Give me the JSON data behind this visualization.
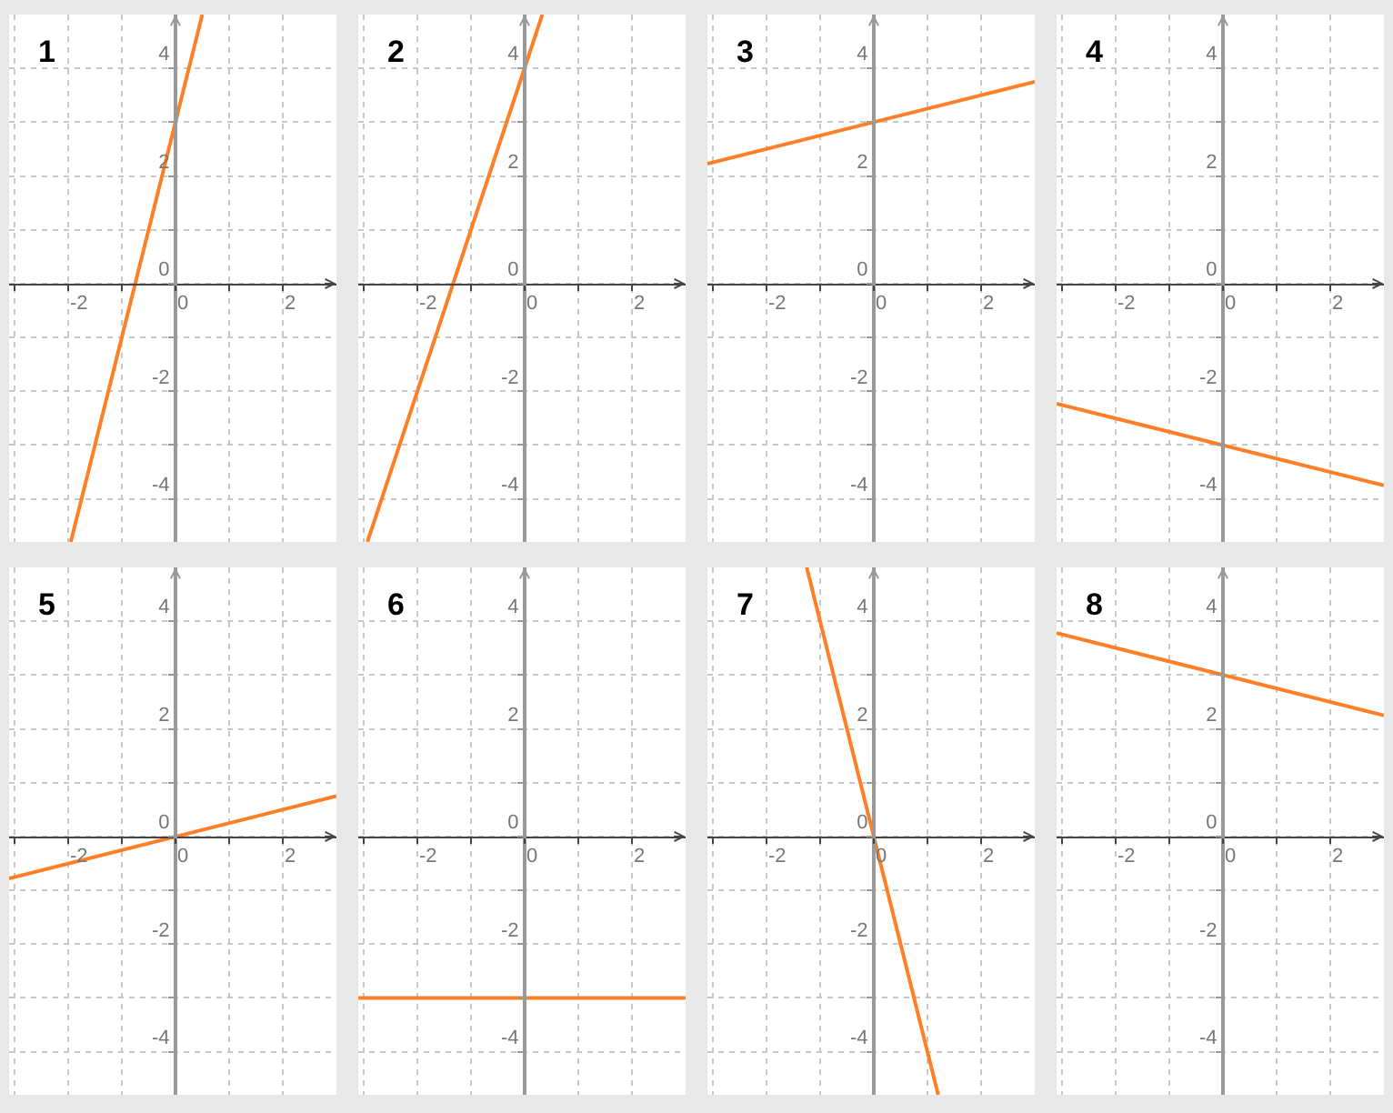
{
  "chart_data": [
    {
      "type": "line",
      "title": "1",
      "xlim": [
        -3.1,
        3
      ],
      "ylim": [
        -4.8,
        5
      ],
      "xticks": [
        {
          "value": -3,
          "label": null
        },
        -2,
        {
          "value": -1,
          "label": null
        },
        0,
        {
          "value": 1,
          "label": null
        },
        2
      ],
      "yticks": [
        -4,
        {
          "value": -3,
          "label": null
        },
        -2,
        {
          "value": -1,
          "label": null
        },
        0,
        {
          "value": 1,
          "label": null
        },
        2,
        {
          "value": 3,
          "label": null
        },
        4
      ],
      "grid": true,
      "series": [
        {
          "color": "#ff7f27",
          "x": [
            -1.95,
            0.5
          ],
          "values": [
            -4.8,
            5
          ]
        }
      ]
    },
    {
      "type": "line",
      "title": "2",
      "xlim": [
        -3.1,
        3
      ],
      "ylim": [
        -4.8,
        5
      ],
      "xticks": [
        {
          "value": -3,
          "label": null
        },
        -2,
        {
          "value": -1,
          "label": null
        },
        0,
        {
          "value": 1,
          "label": null
        },
        2
      ],
      "yticks": [
        -4,
        {
          "value": -3,
          "label": null
        },
        -2,
        {
          "value": -1,
          "label": null
        },
        0,
        {
          "value": 1,
          "label": null
        },
        2,
        {
          "value": 3,
          "label": null
        },
        4
      ],
      "grid": true,
      "series": [
        {
          "color": "#ff7f27",
          "x": [
            -2.93,
            0.33
          ],
          "values": [
            -4.8,
            5
          ]
        }
      ]
    },
    {
      "type": "line",
      "title": "3",
      "xlim": [
        -3.1,
        3
      ],
      "ylim": [
        -4.8,
        5
      ],
      "xticks": [
        {
          "value": -3,
          "label": null
        },
        -2,
        {
          "value": -1,
          "label": null
        },
        0,
        {
          "value": 1,
          "label": null
        },
        2
      ],
      "yticks": [
        -4,
        {
          "value": -3,
          "label": null
        },
        -2,
        {
          "value": -1,
          "label": null
        },
        0,
        {
          "value": 1,
          "label": null
        },
        2,
        {
          "value": 3,
          "label": null
        },
        4
      ],
      "grid": true,
      "series": [
        {
          "color": "#ff7f27",
          "x": [
            -3.1,
            3
          ],
          "values": [
            2.23,
            3.75
          ]
        }
      ]
    },
    {
      "type": "line",
      "title": "4",
      "xlim": [
        -3.1,
        3
      ],
      "ylim": [
        -4.8,
        5
      ],
      "xticks": [
        {
          "value": -3,
          "label": null
        },
        -2,
        {
          "value": -1,
          "label": null
        },
        0,
        {
          "value": 1,
          "label": null
        },
        2
      ],
      "yticks": [
        -4,
        {
          "value": -3,
          "label": null
        },
        -2,
        {
          "value": -1,
          "label": null
        },
        0,
        {
          "value": 1,
          "label": null
        },
        2,
        {
          "value": 3,
          "label": null
        },
        4
      ],
      "grid": true,
      "series": [
        {
          "color": "#ff7f27",
          "x": [
            -3.1,
            3
          ],
          "values": [
            -2.23,
            -3.75
          ]
        }
      ]
    },
    {
      "type": "line",
      "title": "5",
      "xlim": [
        -3.1,
        3
      ],
      "ylim": [
        -4.8,
        5
      ],
      "xticks": [
        {
          "value": -3,
          "label": null
        },
        -2,
        {
          "value": -1,
          "label": null
        },
        0,
        {
          "value": 1,
          "label": null
        },
        2
      ],
      "yticks": [
        -4,
        {
          "value": -3,
          "label": null
        },
        -2,
        {
          "value": -1,
          "label": null
        },
        0,
        {
          "value": 1,
          "label": null
        },
        2,
        {
          "value": 3,
          "label": null
        },
        4
      ],
      "grid": true,
      "series": [
        {
          "color": "#ff7f27",
          "x": [
            -3.1,
            3
          ],
          "values": [
            -0.78,
            0.75
          ]
        }
      ]
    },
    {
      "type": "line",
      "title": "6",
      "xlim": [
        -3.1,
        3
      ],
      "ylim": [
        -4.8,
        5
      ],
      "xticks": [
        {
          "value": -3,
          "label": null
        },
        -2,
        {
          "value": -1,
          "label": null
        },
        0,
        {
          "value": 1,
          "label": null
        },
        2
      ],
      "yticks": [
        -4,
        {
          "value": -3,
          "label": null
        },
        -2,
        {
          "value": -1,
          "label": null
        },
        0,
        {
          "value": 1,
          "label": null
        },
        2,
        {
          "value": 3,
          "label": null
        },
        4
      ],
      "grid": true,
      "series": [
        {
          "color": "#ff7f27",
          "x": [
            -3.1,
            3
          ],
          "values": [
            -3,
            -3
          ]
        }
      ]
    },
    {
      "type": "line",
      "title": "7",
      "xlim": [
        -3.1,
        3
      ],
      "ylim": [
        -4.8,
        5
      ],
      "xticks": [
        {
          "value": -3,
          "label": null
        },
        -2,
        {
          "value": -1,
          "label": null
        },
        0,
        {
          "value": 1,
          "label": null
        },
        2
      ],
      "yticks": [
        -4,
        {
          "value": -3,
          "label": null
        },
        -2,
        {
          "value": -1,
          "label": null
        },
        0,
        {
          "value": 1,
          "label": null
        },
        2,
        {
          "value": 3,
          "label": null
        },
        4
      ],
      "grid": true,
      "series": [
        {
          "color": "#ff7f27",
          "x": [
            -1.25,
            1.2
          ],
          "values": [
            5,
            -4.8
          ]
        }
      ]
    },
    {
      "type": "line",
      "title": "8",
      "xlim": [
        -3.1,
        3
      ],
      "ylim": [
        -4.8,
        5
      ],
      "xticks": [
        {
          "value": -3,
          "label": null
        },
        -2,
        {
          "value": -1,
          "label": null
        },
        0,
        {
          "value": 1,
          "label": null
        },
        2
      ],
      "yticks": [
        -4,
        {
          "value": -3,
          "label": null
        },
        -2,
        {
          "value": -1,
          "label": null
        },
        0,
        {
          "value": 1,
          "label": null
        },
        2,
        {
          "value": 3,
          "label": null
        },
        4
      ],
      "grid": true,
      "series": [
        {
          "color": "#ff7f27",
          "x": [
            -3.1,
            3
          ],
          "values": [
            3.78,
            2.25
          ]
        }
      ]
    }
  ]
}
